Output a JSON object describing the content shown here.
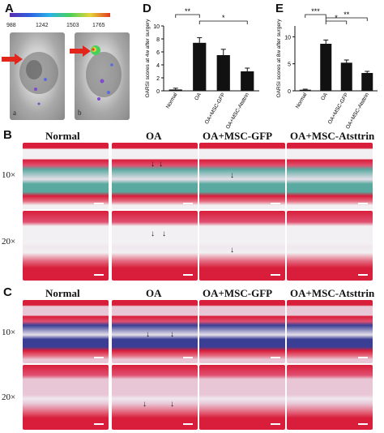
{
  "panels": {
    "A": "A",
    "B": "B",
    "C": "C",
    "D": "D",
    "E": "E"
  },
  "panel_a": {
    "scale_ticks": [
      "988",
      "1242",
      "1503",
      "1765"
    ],
    "sub_labels": [
      "a",
      "b"
    ]
  },
  "histology": {
    "columns": [
      "Normal",
      "OA",
      "OA+MSC-GFP",
      "OA+MSC-Atsttrin"
    ],
    "rows": [
      "10×",
      "20×"
    ],
    "colors": {
      "cartilage_red": "#d81e3a",
      "bone_green": "#5aa9a0",
      "bone_blue": "#3a3f95",
      "pink_bg": "#e9c6d6",
      "light_bg": "#f2f0f2"
    }
  },
  "chart_data": [
    {
      "type": "bar",
      "ylabel": "OARSI scores at 4w after surgery",
      "categories": [
        "Normal",
        "OA",
        "OA+MSC-GFP",
        "OA+MSC-Atsttrin"
      ],
      "values": [
        0.2,
        7.4,
        5.5,
        3.0
      ],
      "errors": [
        0.2,
        0.8,
        0.9,
        0.5
      ],
      "ylim": [
        0,
        10
      ],
      "yticks": [
        "0",
        "2",
        "4",
        "6",
        "8",
        "10"
      ],
      "significance": [
        "**",
        "*"
      ]
    },
    {
      "type": "bar",
      "ylabel": "OARSI scores at 8w after surgery",
      "categories": [
        "Normal",
        "OA",
        "OA+MSC-GFP",
        "OA+MSC-Atsttrin"
      ],
      "values": [
        0.2,
        8.7,
        5.2,
        3.3
      ],
      "errors": [
        0.1,
        0.7,
        0.5,
        0.3
      ],
      "ylim": [
        0,
        12
      ],
      "yticks": [
        "0",
        "5",
        "10"
      ],
      "significance": [
        "***",
        "*",
        "**"
      ]
    }
  ]
}
